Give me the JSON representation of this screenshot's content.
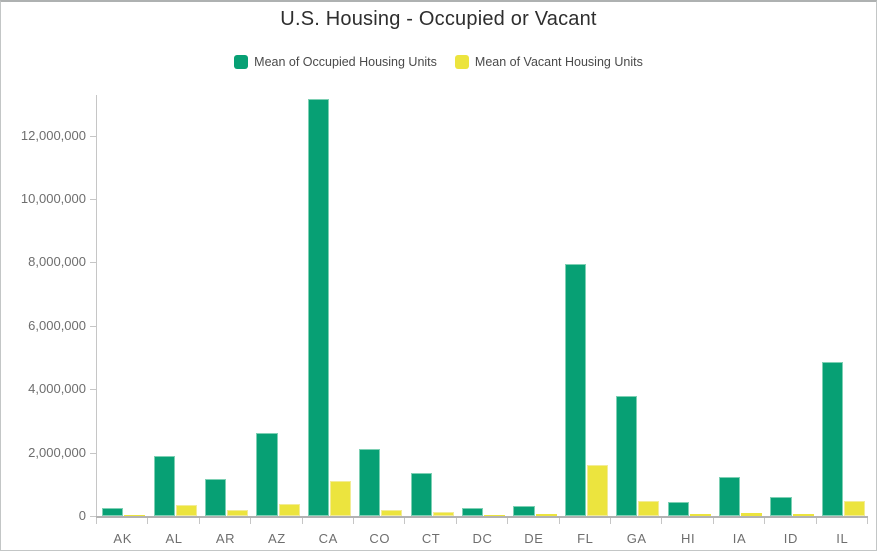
{
  "header": {
    "title": "U.S. Housing - Occupied or Vacant"
  },
  "legend": {
    "items": [
      {
        "label": "Mean of Occupied Housing Units",
        "color": "#07a074",
        "edge_color": "#7ed0b4"
      },
      {
        "label": "Mean of Vacant Housing Units",
        "color": "#ece43e",
        "edge_color": "#f3ec95"
      }
    ]
  },
  "chart_data": {
    "type": "bar",
    "title": "U.S. Housing - Occupied or Vacant",
    "categories": [
      "AK",
      "AL",
      "AR",
      "AZ",
      "CA",
      "CO",
      "CT",
      "DC",
      "DE",
      "FL",
      "GA",
      "HI",
      "IA",
      "ID",
      "IL"
    ],
    "series": [
      {
        "name": "Mean of Occupied Housing Units",
        "color": "#07a074",
        "values": [
          250000,
          1880000,
          1160000,
          2630000,
          13150000,
          2100000,
          1370000,
          260000,
          330000,
          7950000,
          3800000,
          440000,
          1240000,
          610000,
          4870000
        ]
      },
      {
        "name": "Mean of Vacant Housing Units",
        "color": "#ece43e",
        "values": [
          45000,
          360000,
          200000,
          380000,
          1100000,
          200000,
          114000,
          30000,
          63000,
          1610000,
          480000,
          53000,
          104000,
          73000,
          480000
        ]
      }
    ],
    "xlabel": "",
    "ylabel": "",
    "ylim": [
      0,
      13250000
    ],
    "y_ticks": [
      {
        "value": 0,
        "label": "0"
      },
      {
        "value": 2000000,
        "label": "2,000,000"
      },
      {
        "value": 4000000,
        "label": "4,000,000"
      },
      {
        "value": 6000000,
        "label": "6,000,000"
      },
      {
        "value": 8000000,
        "label": "8,000,000"
      },
      {
        "value": 10000000,
        "label": "10,000,000"
      },
      {
        "value": 12000000,
        "label": "12,000,000"
      }
    ],
    "grid": "off",
    "legend_position": "top"
  },
  "colors": {
    "axis_line": "#c6c6c6",
    "baseline": "#b2b2b2",
    "axis_text": "#6e6e6e",
    "title_text": "#2e2e2e",
    "legend_text": "#4a4a4a"
  }
}
